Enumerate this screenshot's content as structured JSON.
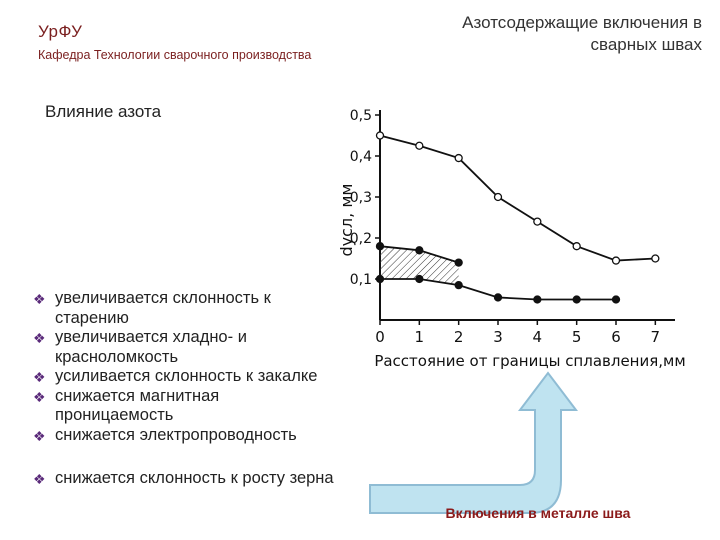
{
  "header": {
    "org": "УрФУ",
    "department": "Кафедра Технологии сварочного производства",
    "title_line1": "Азотсодержащие включения в",
    "title_line2": "сварных швах"
  },
  "subtitle": "Влияние азота",
  "bullets": [
    {
      "line1": "увеличивается склонность к",
      "line2": "старению"
    },
    {
      "line1": "увеличивается хладно- и",
      "line2": "красноломкость"
    },
    {
      "line1": "усиливается склонность к закалке",
      "line2": ""
    },
    {
      "line1": "снижается магнитная",
      "line2": "проницаемость"
    },
    {
      "line1": "снижается электропроводность",
      "line2": ""
    },
    {
      "line1": "снижается склонность к росту зерна",
      "line2": ""
    }
  ],
  "bullet_marker": "❖",
  "caption": "Включения в металле шва",
  "colors": {
    "accent": "#8b1a1a",
    "bullet": "#5a2a7a",
    "arrow_fill": "#bfe3f0",
    "arrow_stroke": "#8fbcd4"
  },
  "chart_data": {
    "type": "line",
    "title": "",
    "xlabel": "Расстояние от границы сплавления,мм",
    "ylabel": "dусл, мм",
    "xlim": [
      0,
      7.5
    ],
    "ylim": [
      0,
      0.5
    ],
    "x_ticks": [
      "0",
      "1",
      "2",
      "3",
      "4",
      "5",
      "6",
      "7"
    ],
    "y_ticks": [
      "0,1",
      "0,2",
      "0,3",
      "0,4",
      "0,5"
    ],
    "grid": false,
    "series": [
      {
        "style": "open",
        "points": [
          [
            0,
            0.45
          ],
          [
            1,
            0.425
          ],
          [
            2,
            0.395
          ],
          [
            3,
            0.3
          ],
          [
            4,
            0.24
          ],
          [
            5,
            0.18
          ],
          [
            6,
            0.145
          ],
          [
            7,
            0.15
          ]
        ]
      },
      {
        "style": "filled",
        "points": [
          [
            0,
            0.18
          ],
          [
            1,
            0.17
          ],
          [
            2,
            0.14
          ]
        ]
      },
      {
        "style": "filled",
        "points": [
          [
            0,
            0.1
          ],
          [
            1,
            0.1
          ],
          [
            2,
            0.085
          ],
          [
            3,
            0.055
          ],
          [
            4,
            0.05
          ],
          [
            5,
            0.05
          ],
          [
            6,
            0.05
          ]
        ]
      }
    ],
    "hatched_region": "between series 2 and 3 for x in [0, 2]"
  }
}
